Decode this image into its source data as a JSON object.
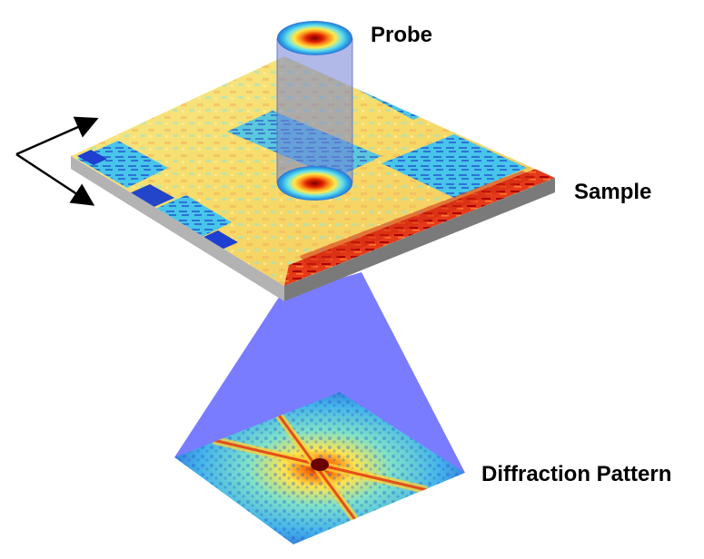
{
  "labels": {
    "probe": "Probe",
    "sample": "Sample",
    "diffraction": "Diffraction Pattern"
  },
  "colors": {
    "background": "#ffffff",
    "beam_cone": "#7a7cff",
    "probe_column": "#6f7fd6",
    "sample_base_light": "#b3b3b3",
    "sample_base_dark": "#7a7a7a",
    "scan_arrow": "#000000",
    "jet_low": "#1f3fd0",
    "jet_mid": "#ffe44d",
    "jet_high": "#c80000"
  }
}
